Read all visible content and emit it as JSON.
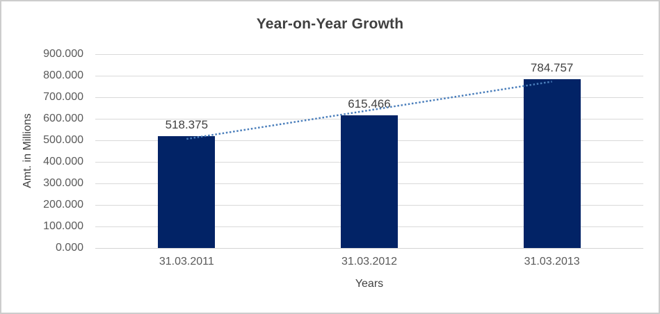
{
  "frame": {
    "background": "#ffffff",
    "border_color": "#cdcdcd"
  },
  "chart_data": {
    "type": "bar",
    "title": "Year-on-Year Growth",
    "xlabel": "Years",
    "ylabel": "Amt. in Millions",
    "categories": [
      "31.03.2011",
      "31.03.2012",
      "31.03.2013"
    ],
    "values": [
      518.375,
      615.466,
      784.757
    ],
    "value_labels": [
      "518.375",
      "615.466",
      "784.757"
    ],
    "ylim": [
      0,
      900
    ],
    "ytick_step": 100,
    "ytick_labels": [
      "0.000",
      "100.000",
      "200.000",
      "300.000",
      "400.000",
      "500.000",
      "600.000",
      "700.000",
      "800.000",
      "900.000"
    ],
    "grid": true,
    "legend": "none",
    "trendline": {
      "type": "linear",
      "style": "dotted"
    },
    "colors": {
      "bar": "#022366",
      "trendline": "#4a7ebb",
      "gridline": "#d9d9d9",
      "axis_line": "#d3d3d3",
      "title_text": "#404040",
      "axis_title_text": "#404040",
      "tick_text": "#595959",
      "value_label_text": "#404040"
    }
  }
}
